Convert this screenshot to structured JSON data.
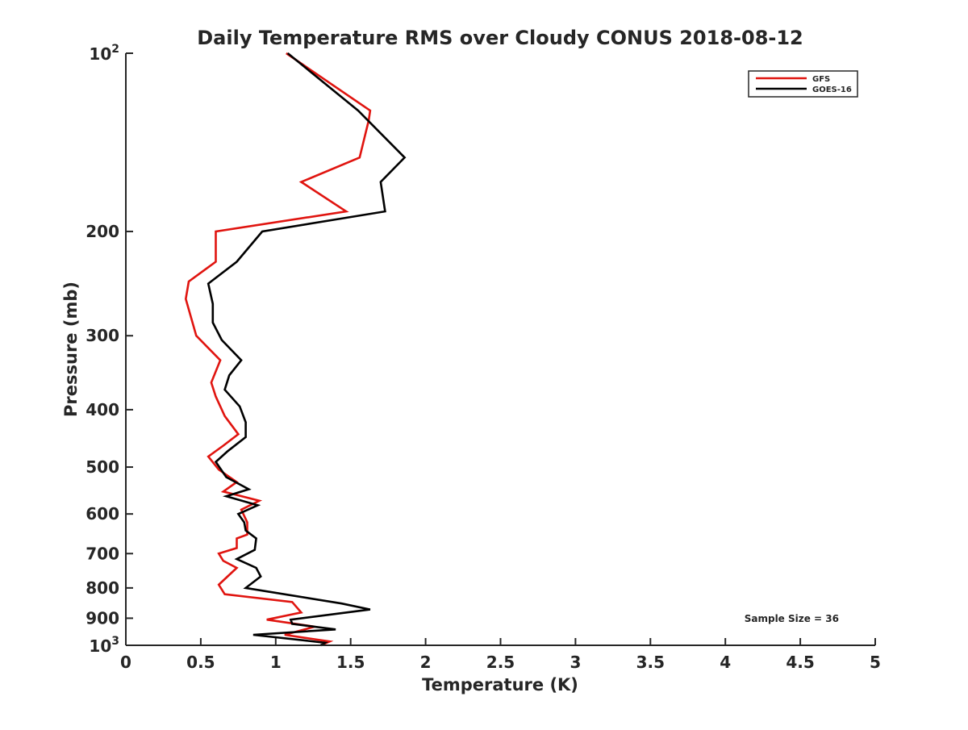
{
  "chart_data": {
    "type": "line",
    "title": "Daily Temperature RMS over Cloudy CONUS 2018-08-12",
    "xlabel": "Temperature (K)",
    "ylabel": "Pressure (mb)",
    "xlim": [
      0,
      5
    ],
    "ylim": [
      100,
      1000
    ],
    "y_scale": "log",
    "y_reversed": true,
    "grid": false,
    "legend_position": "top-right",
    "x_ticks": [
      {
        "value": 0,
        "label": "0"
      },
      {
        "value": 0.5,
        "label": "0.5"
      },
      {
        "value": 1,
        "label": "1"
      },
      {
        "value": 1.5,
        "label": "1.5"
      },
      {
        "value": 2,
        "label": "2"
      },
      {
        "value": 2.5,
        "label": "2.5"
      },
      {
        "value": 3,
        "label": "3"
      },
      {
        "value": 3.5,
        "label": "3.5"
      },
      {
        "value": 4,
        "label": "4"
      },
      {
        "value": 4.5,
        "label": "4.5"
      },
      {
        "value": 5,
        "label": "5"
      }
    ],
    "y_ticks": [
      {
        "value": 100,
        "base": "10",
        "exp": "2",
        "label": ""
      },
      {
        "value": 200,
        "label": "200"
      },
      {
        "value": 300,
        "label": "300"
      },
      {
        "value": 400,
        "label": "400"
      },
      {
        "value": 500,
        "label": "500"
      },
      {
        "value": 600,
        "label": "600"
      },
      {
        "value": 700,
        "label": "700"
      },
      {
        "value": 800,
        "label": "800"
      },
      {
        "value": 900,
        "label": "900"
      },
      {
        "value": 1000,
        "base": "10",
        "exp": "3",
        "label": ""
      }
    ],
    "series": [
      {
        "name": "GFS",
        "color": "#e0140f",
        "points": [
          [
            1.07,
            100
          ],
          [
            1.63,
            125
          ],
          [
            1.62,
            130
          ],
          [
            1.56,
            150
          ],
          [
            1.17,
            165
          ],
          [
            1.47,
            185
          ],
          [
            0.6,
            200
          ],
          [
            0.6,
            225
          ],
          [
            0.42,
            243
          ],
          [
            0.4,
            260
          ],
          [
            0.47,
            300
          ],
          [
            0.63,
            330
          ],
          [
            0.57,
            360
          ],
          [
            0.6,
            380
          ],
          [
            0.66,
            410
          ],
          [
            0.75,
            440
          ],
          [
            0.65,
            460
          ],
          [
            0.55,
            480
          ],
          [
            0.62,
            505
          ],
          [
            0.74,
            530
          ],
          [
            0.65,
            550
          ],
          [
            0.89,
            570
          ],
          [
            0.77,
            590
          ],
          [
            0.81,
            620
          ],
          [
            0.81,
            650
          ],
          [
            0.74,
            660
          ],
          [
            0.74,
            685
          ],
          [
            0.62,
            700
          ],
          [
            0.65,
            720
          ],
          [
            0.74,
            740
          ],
          [
            0.62,
            790
          ],
          [
            0.66,
            820
          ],
          [
            1.11,
            845
          ],
          [
            1.17,
            880
          ],
          [
            0.94,
            905
          ],
          [
            1.26,
            930
          ],
          [
            1.06,
            960
          ],
          [
            1.36,
            985
          ],
          [
            1.3,
            1000
          ]
        ]
      },
      {
        "name": "GOES-16",
        "color": "#000000",
        "points": [
          [
            1.08,
            100
          ],
          [
            1.55,
            125
          ],
          [
            1.86,
            150
          ],
          [
            1.7,
            165
          ],
          [
            1.73,
            185
          ],
          [
            0.91,
            200
          ],
          [
            0.74,
            225
          ],
          [
            0.55,
            245
          ],
          [
            0.58,
            265
          ],
          [
            0.58,
            285
          ],
          [
            0.64,
            305
          ],
          [
            0.77,
            330
          ],
          [
            0.69,
            350
          ],
          [
            0.66,
            370
          ],
          [
            0.76,
            395
          ],
          [
            0.8,
            420
          ],
          [
            0.8,
            445
          ],
          [
            0.68,
            470
          ],
          [
            0.6,
            490
          ],
          [
            0.67,
            520
          ],
          [
            0.82,
            545
          ],
          [
            0.67,
            560
          ],
          [
            0.88,
            580
          ],
          [
            0.75,
            600
          ],
          [
            0.79,
            620
          ],
          [
            0.8,
            640
          ],
          [
            0.87,
            660
          ],
          [
            0.86,
            690
          ],
          [
            0.74,
            715
          ],
          [
            0.87,
            740
          ],
          [
            0.9,
            765
          ],
          [
            0.8,
            800
          ],
          [
            1.44,
            850
          ],
          [
            1.63,
            870
          ],
          [
            1.1,
            905
          ],
          [
            1.11,
            920
          ],
          [
            1.4,
            940
          ],
          [
            0.85,
            960
          ],
          [
            1.33,
            990
          ],
          [
            1.3,
            1000
          ]
        ]
      }
    ],
    "annotation": "Sample Size = 36"
  }
}
